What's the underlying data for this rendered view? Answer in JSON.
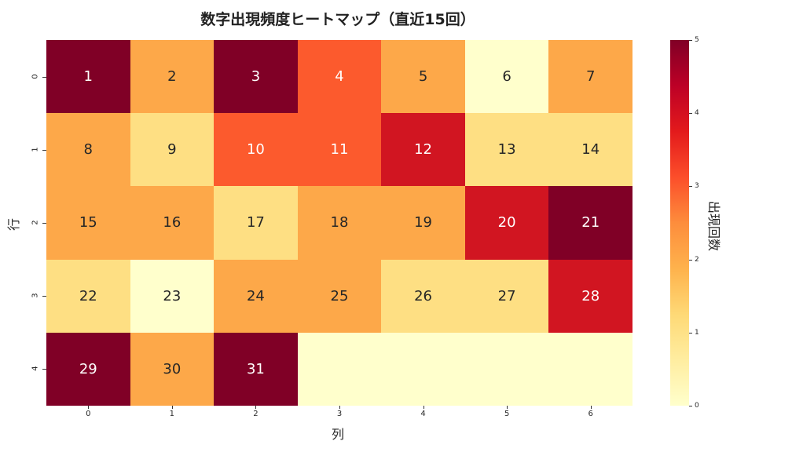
{
  "chart_data": {
    "type": "heatmap",
    "title": "数字出現頻度ヒートマップ（直近15回）",
    "xlabel": "列",
    "ylabel": "行",
    "colorbar_label": "出現回数",
    "colormap": "YlOrRd",
    "vmin": 0,
    "vmax": 5,
    "x_ticks": [
      "0",
      "1",
      "2",
      "3",
      "4",
      "5",
      "6"
    ],
    "y_ticks": [
      "0",
      "1",
      "2",
      "3",
      "4"
    ],
    "colorbar_ticks": [
      "0",
      "1",
      "2",
      "3",
      "4",
      "5"
    ],
    "values": [
      [
        5,
        2,
        5,
        3,
        2,
        0,
        2
      ],
      [
        2,
        1,
        3,
        3,
        4,
        1,
        1
      ],
      [
        2,
        2,
        1,
        2,
        2,
        4,
        5
      ],
      [
        1,
        0,
        2,
        2,
        1,
        1,
        4
      ],
      [
        5,
        2,
        5,
        0,
        0,
        0,
        0
      ]
    ],
    "annotations": [
      [
        "1",
        "2",
        "3",
        "4",
        "5",
        "6",
        "7"
      ],
      [
        "8",
        "9",
        "10",
        "11",
        "12",
        "13",
        "14"
      ],
      [
        "15",
        "16",
        "17",
        "18",
        "19",
        "20",
        "21"
      ],
      [
        "22",
        "23",
        "24",
        "25",
        "26",
        "27",
        "28"
      ],
      [
        "29",
        "30",
        "31",
        "",
        "",
        "",
        ""
      ]
    ]
  },
  "colors": {
    "0": "#ffffcc",
    "1": "#fedf83",
    "2": "#fda849",
    "3": "#fc5a2d",
    "4": "#d11521",
    "5": "#800026"
  }
}
